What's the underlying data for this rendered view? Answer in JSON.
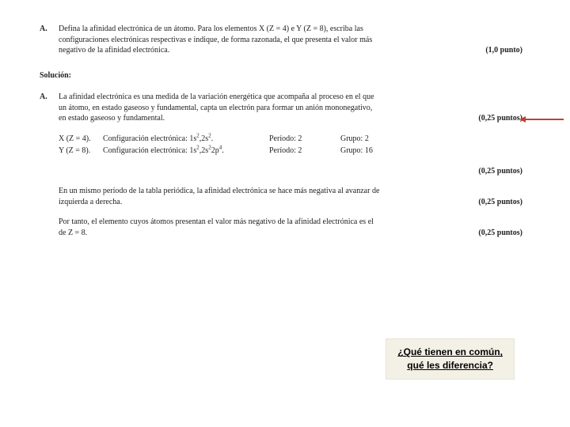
{
  "question": {
    "label": "A.",
    "text_l1": "Defina la afinidad electrónica de un átomo. Para los elementos X (Z = 4) e Y (Z = 8), escriba las",
    "text_l2": "configuraciones electrónicas respectivas e  indique, de forma razonada,  el que presenta el valor más",
    "text_l3": "negativo de la afinidad electrónica.",
    "points": "(1,0 punto)"
  },
  "solucion_label": "Solución:",
  "answer": {
    "label": "A.",
    "p1_l1": "La afinidad electrónica es una medida de la variación energética que acompaña al proceso en el que",
    "p1_l2": "un átomo, en estado gaseoso y fundamental, capta un electrón para formar un anión mononegativo,",
    "p1_l3": "en estado gaseoso y fundamental.",
    "p1_points": "(0,25 puntos)",
    "cfg": {
      "x_label": "X (Z = 4).",
      "x_conf": "Configuración electrónica: 1s",
      "x_periodo": "Período: 2",
      "x_grupo": "Grupo: 2",
      "y_label": "Y (Z = 8).",
      "y_conf": "Configuración electrónica: 1s",
      "y_periodo": "Período: 2",
      "y_grupo": "Grupo: 16"
    },
    "cfg_points": "(0,25 puntos)",
    "p2_l1": "En un mismo período de la tabla periódica, la afinidad electrónica se hace más negativa al avanzar de",
    "p2_l2": "izquierda a derecha.",
    "p2_points": "(0,25 puntos)",
    "p3_l1": "Por tanto, el elemento cuyos átomos presentan el valor más negativo de la afinidad electrónica es el",
    "p3_l2": "de Z = 8.",
    "p3_points": "(0,25 puntos)"
  },
  "callout": {
    "l1": "¿Qué tienen en común,",
    "l2": "qué les diferencia?"
  },
  "colors": {
    "callout_bg": "#f3f1e6",
    "arrow": "#c04030",
    "text": "#222222"
  }
}
